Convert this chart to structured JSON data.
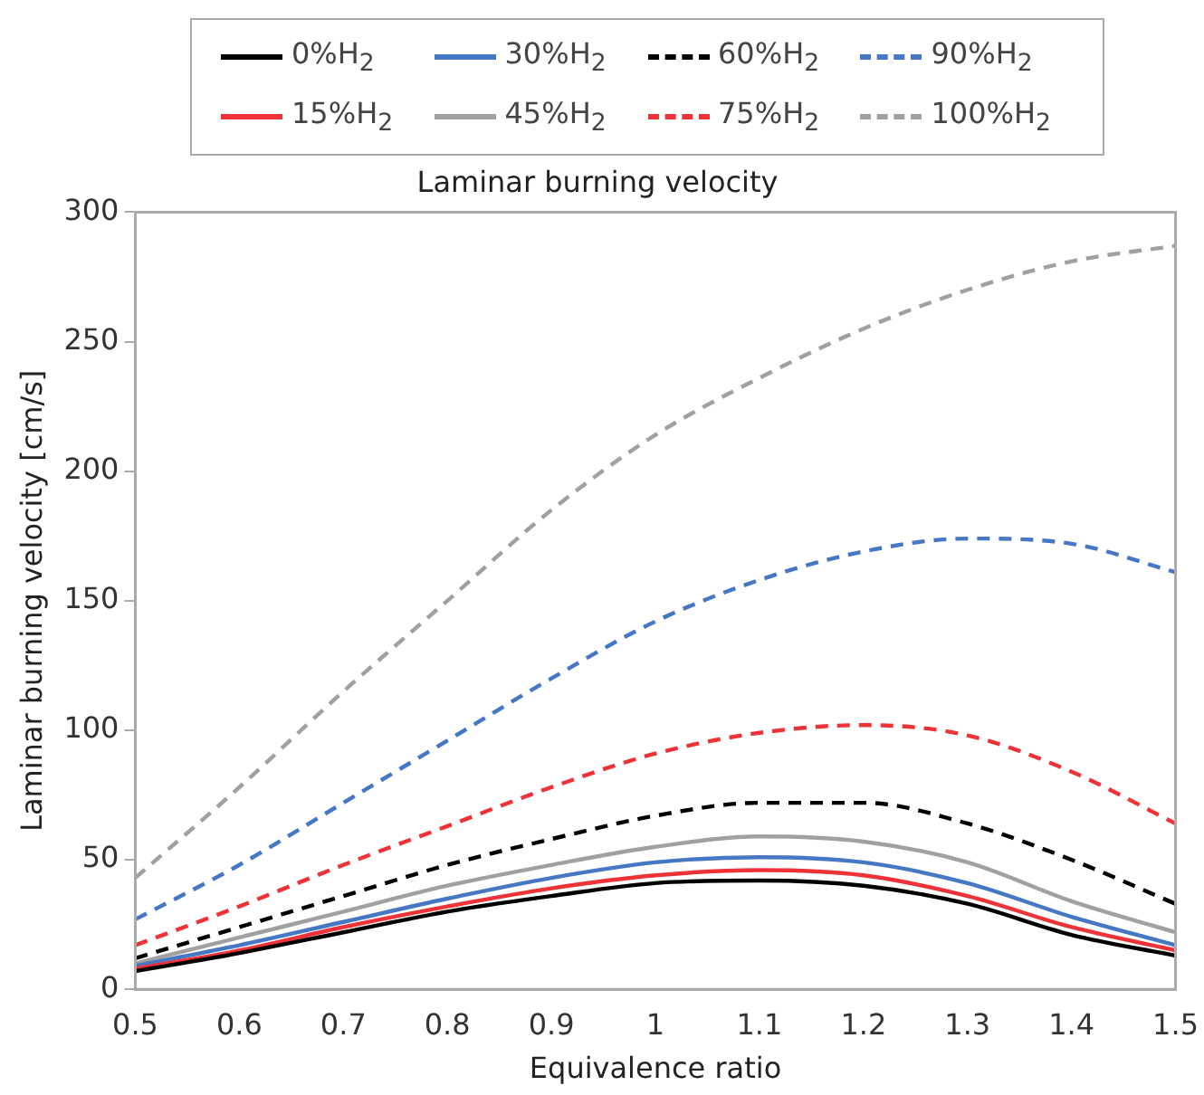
{
  "chart_data": {
    "type": "line",
    "title": "Laminar burning velocity",
    "xlabel": "Equivalence ratio",
    "ylabel": "Laminar burning velocity [cm/s]",
    "x": [
      0.5,
      0.6,
      0.7,
      0.8,
      0.9,
      1.0,
      1.1,
      1.2,
      1.3,
      1.4,
      1.5
    ],
    "xlim": [
      0.5,
      1.5
    ],
    "xticks": [
      0.5,
      0.6,
      0.7,
      0.8,
      0.9,
      1,
      1.1,
      1.2,
      1.3,
      1.4,
      1.5
    ],
    "ylim": [
      0,
      300
    ],
    "yticks": [
      0,
      50,
      100,
      150,
      200,
      250,
      300
    ],
    "grid": false,
    "legend": "top",
    "marker": "none",
    "series": [
      {
        "name": "0%H$_{2}$",
        "color": "#000000",
        "line_style": "solid",
        "values": [
          7,
          14,
          22,
          30,
          36,
          41,
          42,
          40,
          33,
          21,
          13
        ]
      },
      {
        "name": "15%H$_{2}$",
        "color": "#ee3338",
        "line_style": "solid",
        "values": [
          8,
          15,
          24,
          32,
          39,
          44,
          46,
          44,
          36,
          24,
          15
        ]
      },
      {
        "name": "30%H$_{2}$",
        "color": "#4677c4",
        "line_style": "solid",
        "values": [
          9,
          17,
          26,
          35,
          43,
          49,
          51,
          49,
          41,
          28,
          17
        ]
      },
      {
        "name": "45%H$_{2}$",
        "color": "#a0a0a0",
        "line_style": "solid",
        "values": [
          10,
          20,
          30,
          40,
          48,
          55,
          59,
          57,
          49,
          34,
          22
        ]
      },
      {
        "name": "60%H$_{2}$",
        "color": "#000000",
        "line_style": "dashed",
        "values": [
          12,
          24,
          36,
          48,
          58,
          67,
          72,
          72,
          64,
          50,
          33
        ]
      },
      {
        "name": "75%H$_{2}$",
        "color": "#ee3338",
        "line_style": "dashed",
        "values": [
          17,
          32,
          48,
          63,
          78,
          91,
          99,
          102,
          98,
          84,
          64
        ]
      },
      {
        "name": "90%H$_{2}$",
        "color": "#4677c4",
        "line_style": "dashed",
        "values": [
          27,
          48,
          72,
          96,
          120,
          142,
          158,
          169,
          174,
          172,
          161
        ]
      },
      {
        "name": "100%H$_{2}$",
        "color": "#a0a0a0",
        "line_style": "dashed",
        "values": [
          43,
          78,
          115,
          150,
          185,
          214,
          236,
          255,
          270,
          281,
          287
        ]
      }
    ]
  }
}
